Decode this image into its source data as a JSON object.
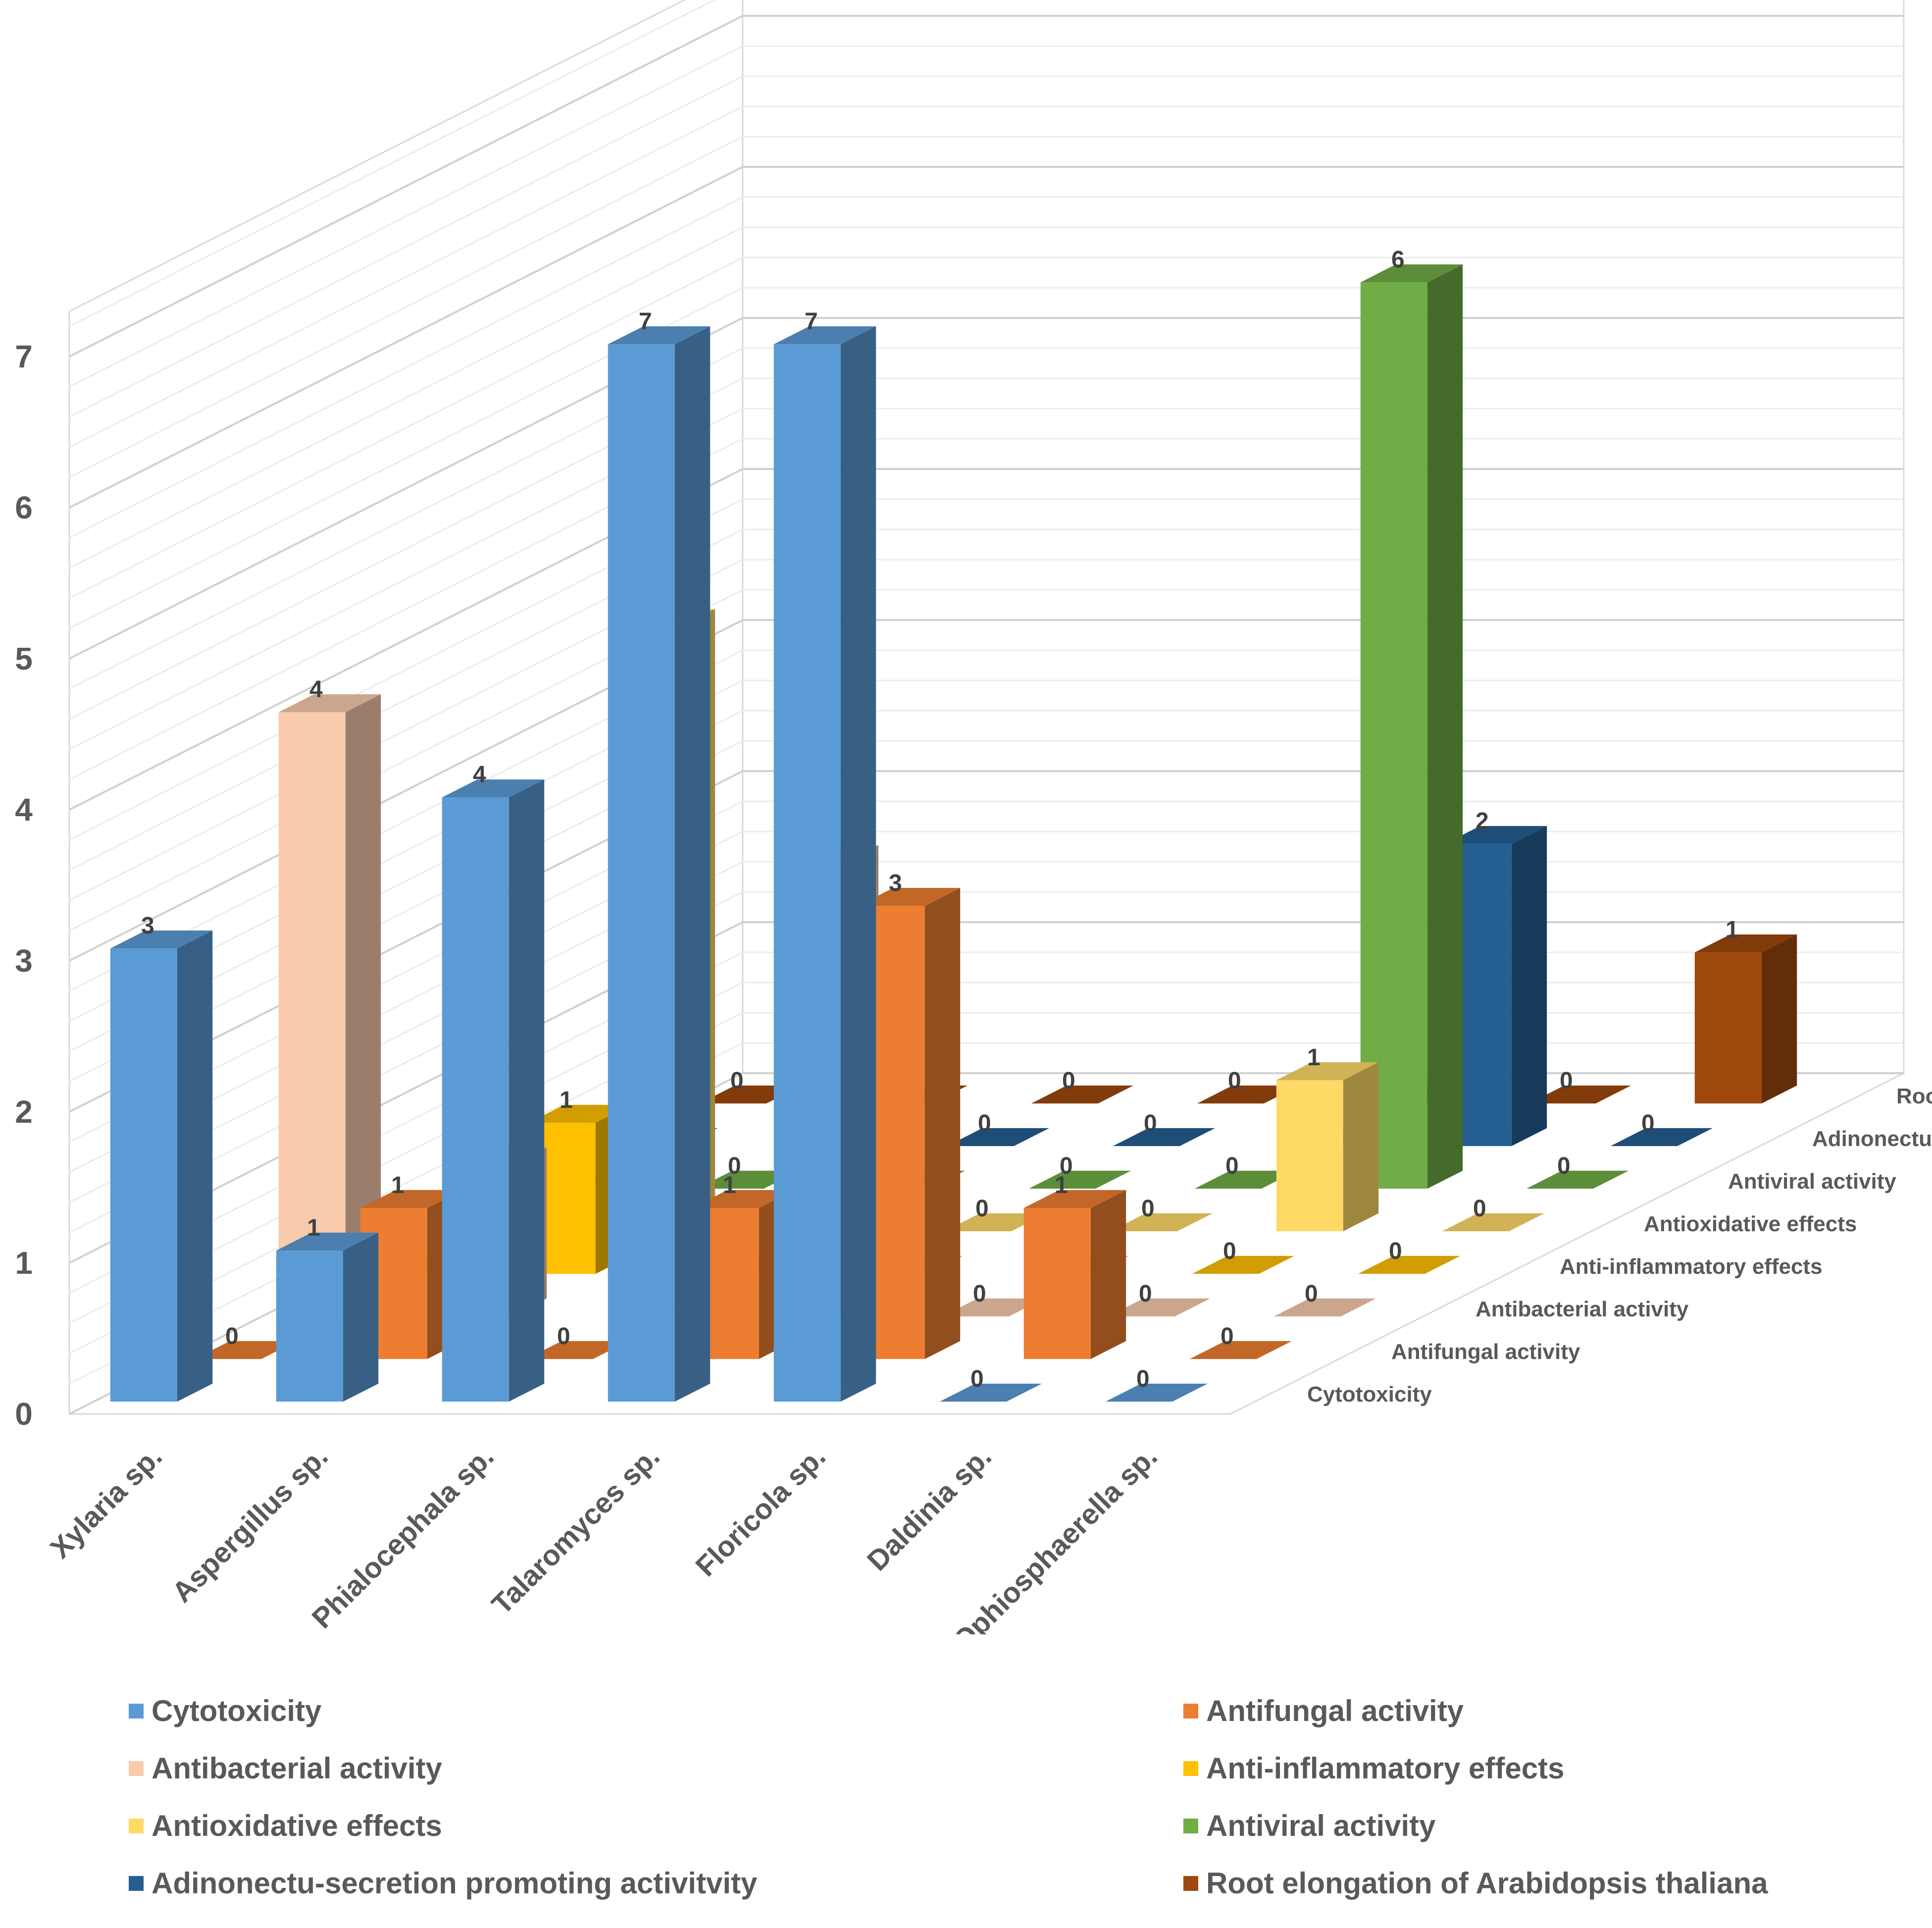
{
  "chart_data": {
    "type": "bar",
    "variant": "3d-column",
    "categories": [
      "Xylaria sp.",
      "Aspergillus sp.",
      "Phialocephala sp.",
      "Talaromyces sp.",
      "Floricola sp.",
      "Daldinia sp.",
      "Ophiosphaerella sp."
    ],
    "series": [
      {
        "name": "Cytotoxicity",
        "axis_label": "Cytotoxicity",
        "color": "#5B9BD5",
        "values": [
          3,
          1,
          4,
          7,
          7,
          0,
          0
        ]
      },
      {
        "name": "Antifungal activity",
        "axis_label": "Antifungal activity",
        "color": "#ED7D31",
        "values": [
          0,
          1,
          0,
          1,
          3,
          1,
          0
        ]
      },
      {
        "name": "Antibacterial activity",
        "axis_label": "Antibacterial activity",
        "color": "#F8CBAD",
        "values": [
          4,
          1,
          0,
          3,
          0,
          0,
          0
        ]
      },
      {
        "name": "Anti-inflammatory effects",
        "axis_label": "Anti-inflammatory effects",
        "color": "#FFC000",
        "values": [
          0,
          1,
          0,
          0,
          0,
          0,
          0
        ]
      },
      {
        "name": "Antioxidative effects",
        "axis_label": "Antioxidative effects",
        "color": "#FFD966",
        "values": [
          0,
          4,
          0,
          0,
          0,
          1,
          0
        ]
      },
      {
        "name": "Antiviral activity",
        "axis_label": "Antiviral activity",
        "color": "#70AD47",
        "values": [
          0,
          0,
          0,
          0,
          0,
          6,
          0
        ]
      },
      {
        "name": "Adinonectu-secretion promoting activitvity",
        "axis_label": "Adinonectu-secretion…",
        "color": "#255E91",
        "values": [
          0,
          0,
          0,
          0,
          0,
          2,
          0
        ]
      },
      {
        "name": "Root elongation of Arabidopsis thaliana",
        "axis_label": "Root elongation of…",
        "color": "#9E480E",
        "values": [
          0,
          0,
          0,
          0,
          0,
          0,
          1
        ]
      }
    ],
    "y_ticks": [
      "0",
      "1",
      "2",
      "3",
      "4",
      "5",
      "6",
      "7"
    ],
    "ylim": [
      0,
      7
    ],
    "gridlines": true,
    "legend_position": "bottom",
    "data_labels": true,
    "title": "",
    "xlabel": "",
    "ylabel": ""
  }
}
